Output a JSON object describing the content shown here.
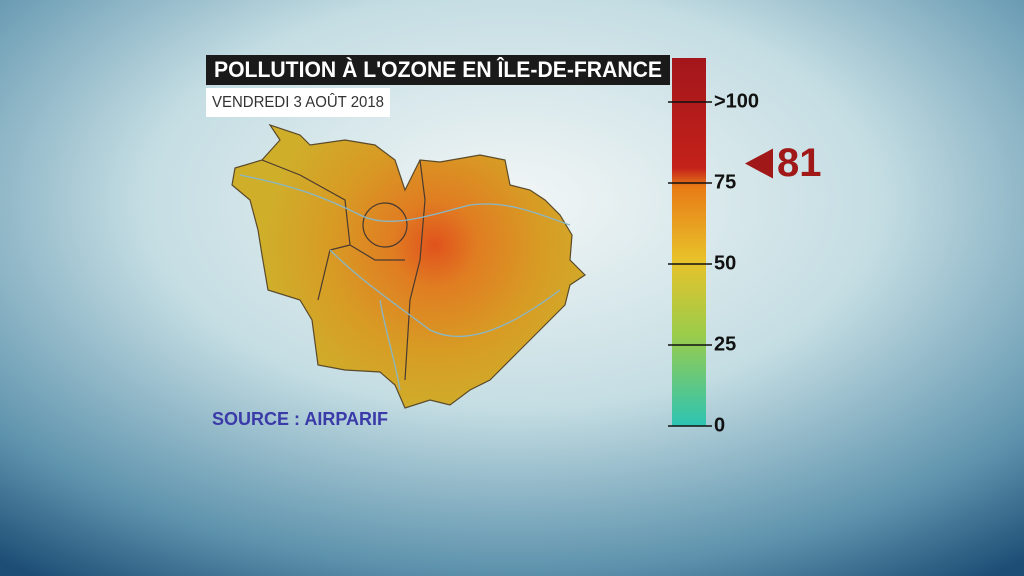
{
  "header": {
    "title": "POLLUTION À L'OZONE EN ÎLE-DE-FRANCE",
    "subtitle": "VENDREDI 3 AOÛT 2018"
  },
  "source": "SOURCE : AIRPARIF",
  "scale": {
    "ticks": [
      0,
      25,
      50,
      75,
      {
        "value": 100,
        "label": ">100"
      }
    ],
    "indicator": 81
  }
}
